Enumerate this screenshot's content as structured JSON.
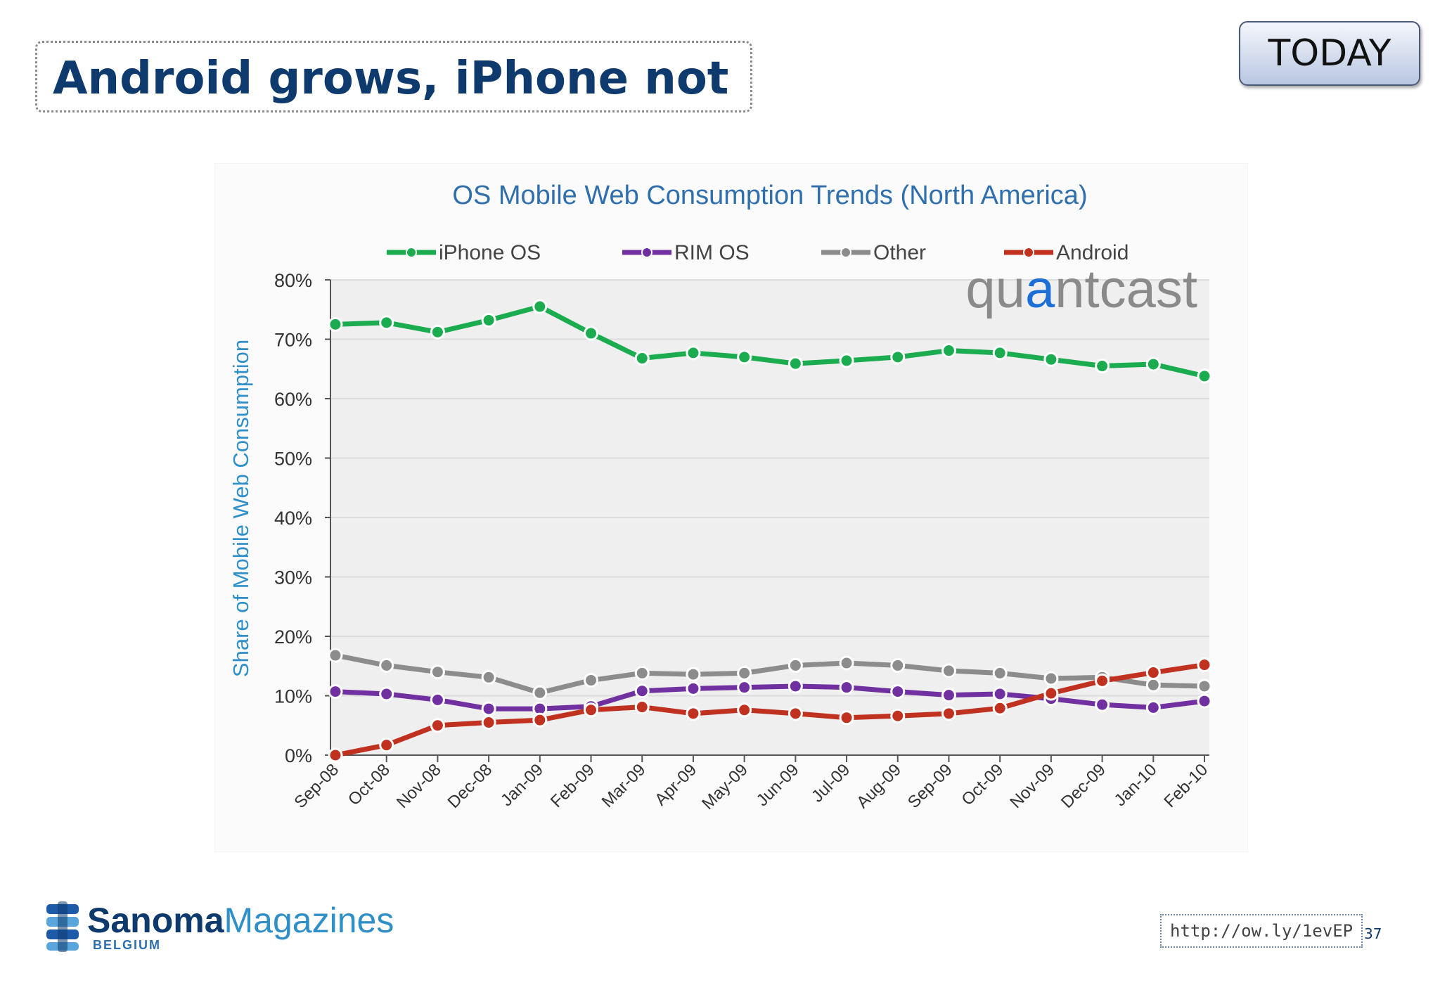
{
  "slide": {
    "title": "Android grows, iPhone not",
    "today_button": "TODAY",
    "url": "http://ow.ly/1evEP",
    "page_number": "37",
    "logo": {
      "name_bold": "Sanoma",
      "name_light": "Magazines",
      "country": "BELGIUM"
    }
  },
  "chart_data": {
    "type": "line",
    "title": "OS Mobile Web Consumption Trends (North America)",
    "xlabel": "",
    "ylabel": "Share of Mobile Web Consumption",
    "ylim": [
      0,
      80
    ],
    "y_ticks": [
      "0%",
      "10%",
      "20%",
      "30%",
      "40%",
      "50%",
      "60%",
      "70%",
      "80%"
    ],
    "grid": true,
    "legend_position": "top",
    "watermark": "quantcast",
    "categories": [
      "Sep-08",
      "Oct-08",
      "Nov-08",
      "Dec-08",
      "Jan-09",
      "Feb-09",
      "Mar-09",
      "Apr-09",
      "May-09",
      "Jun-09",
      "Jul-09",
      "Aug-09",
      "Sep-09",
      "Oct-09",
      "Nov-09",
      "Dec-09",
      "Jan-10",
      "Feb-10"
    ],
    "series": [
      {
        "name": "iPhone OS",
        "color": "#1aac4e",
        "values": [
          72.5,
          72.8,
          71.2,
          73.2,
          75.5,
          71.0,
          66.8,
          67.7,
          67.0,
          65.9,
          66.4,
          67.0,
          68.1,
          67.7,
          66.6,
          65.5,
          65.8,
          63.8
        ]
      },
      {
        "name": "RIM OS",
        "color": "#7030a0",
        "values": [
          10.7,
          10.3,
          9.3,
          7.8,
          7.8,
          8.2,
          10.8,
          11.2,
          11.4,
          11.6,
          11.4,
          10.7,
          10.1,
          10.3,
          9.5,
          8.5,
          8.0,
          9.1
        ]
      },
      {
        "name": "Other",
        "color": "#8c8c8c",
        "values": [
          16.8,
          15.1,
          14.0,
          13.1,
          10.5,
          12.6,
          13.8,
          13.6,
          13.8,
          15.1,
          15.5,
          15.1,
          14.2,
          13.8,
          12.9,
          13.1,
          11.8,
          11.6
        ]
      },
      {
        "name": "Android",
        "color": "#c0311f",
        "values": [
          0.0,
          1.7,
          5.0,
          5.5,
          5.9,
          7.6,
          8.1,
          7.0,
          7.6,
          7.0,
          6.3,
          6.6,
          7.0,
          7.9,
          10.4,
          12.5,
          13.9,
          15.2
        ]
      }
    ]
  }
}
